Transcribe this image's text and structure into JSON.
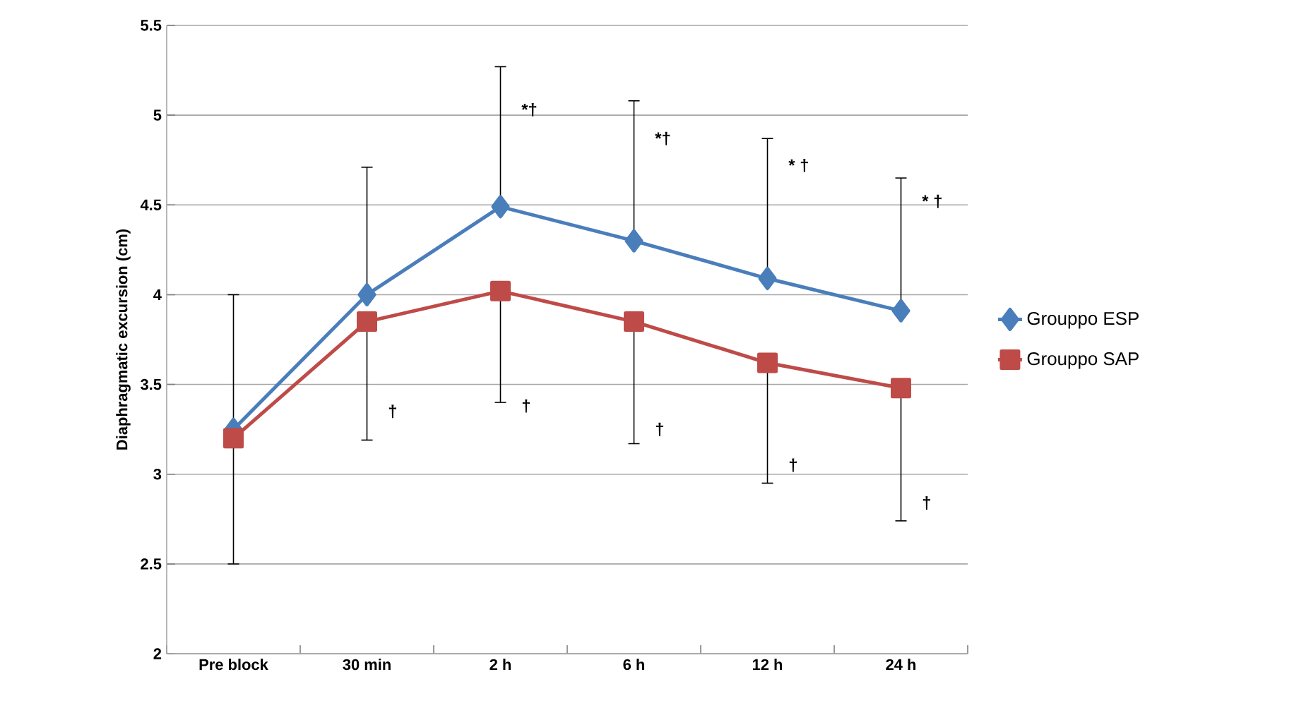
{
  "chart_data": {
    "type": "line",
    "ylabel": "Diaphragmatic excursion (cm)",
    "categories": [
      "Pre block",
      "30 min",
      "2 h",
      "6 h",
      "12 h",
      "24 h"
    ],
    "series": [
      {
        "name": "Grouppo  ESP",
        "color": "#4a7ebb",
        "marker": "diamond",
        "values": [
          3.25,
          4.0,
          4.49,
          4.3,
          4.09,
          3.91
        ],
        "errors": [
          [
            3.25,
            4.0
          ],
          [
            4.0,
            4.71
          ],
          [
            4.49,
            5.27
          ],
          [
            4.3,
            5.08
          ],
          [
            4.09,
            4.87
          ],
          [
            3.91,
            4.65
          ]
        ]
      },
      {
        "name": "Grouppo  SAP",
        "color": "#be4b48",
        "marker": "square",
        "values": [
          3.2,
          3.85,
          4.02,
          3.85,
          3.62,
          3.48
        ],
        "errors": [
          [
            2.5,
            3.2
          ],
          [
            3.19,
            3.85
          ],
          [
            3.4,
            4.02
          ],
          [
            3.17,
            3.85
          ],
          [
            2.95,
            3.62
          ],
          [
            2.74,
            3.48
          ]
        ]
      }
    ],
    "ylim": [
      2,
      5.5
    ],
    "yticks": [
      2,
      2.5,
      3,
      3.5,
      4,
      4.5,
      5,
      5.5
    ],
    "grid": "y",
    "legend": "right",
    "annotations": [
      {
        "text": "*†",
        "x": "2 h",
        "y": 5.03
      },
      {
        "text": "*†",
        "x": "6 h",
        "y": 4.87
      },
      {
        "text": "* †",
        "x": "12 h",
        "y": 4.72
      },
      {
        "text": "*  †",
        "x": "24 h",
        "y": 4.52
      },
      {
        "text": "†",
        "x": "30 min",
        "y": 3.35
      },
      {
        "text": "†",
        "x": "2 h",
        "y": 3.38
      },
      {
        "text": "†",
        "x": "6 h",
        "y": 3.25
      },
      {
        "text": "†",
        "x": "12 h",
        "y": 3.05
      },
      {
        "text": "†",
        "x": "24 h",
        "y": 2.84
      }
    ]
  }
}
